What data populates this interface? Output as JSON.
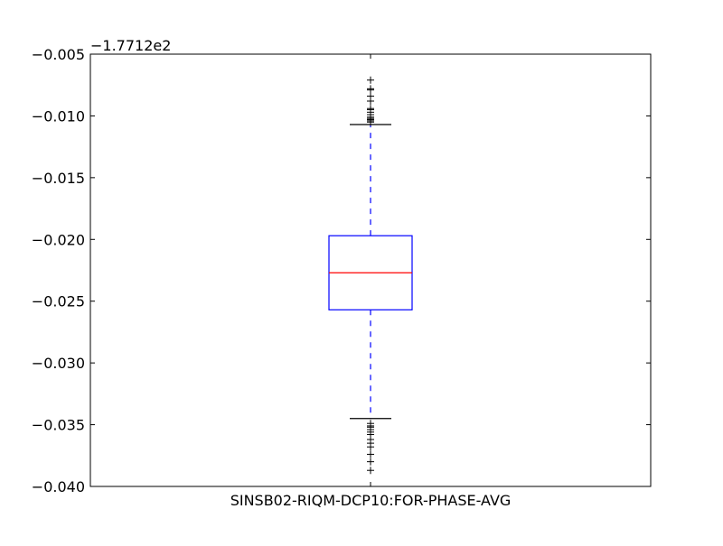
{
  "chart_data": {
    "type": "box",
    "title": "",
    "xlabel": "",
    "ylabel": "",
    "offset_label": "−1.7712e2",
    "categories": [
      "SINSB02-RIQM-DCP10:FOR-PHASE-AVG"
    ],
    "ylim": [
      -0.04,
      -0.005
    ],
    "yticks": [
      -0.04,
      -0.035,
      -0.03,
      -0.025,
      -0.02,
      -0.015,
      -0.01,
      -0.005
    ],
    "ytick_labels": [
      "−0.040",
      "−0.035",
      "−0.030",
      "−0.025",
      "−0.020",
      "−0.015",
      "−0.010",
      "−0.005"
    ],
    "boxes": [
      {
        "category": "SINSB02-RIQM-DCP10:FOR-PHASE-AVG",
        "whisker_high": -0.0107,
        "q3": -0.0197,
        "median": -0.0227,
        "q1": -0.0257,
        "whisker_low": -0.0345,
        "outliers_high": [
          -0.0071,
          -0.0078,
          -0.0079,
          -0.0084,
          -0.0088,
          -0.0094,
          -0.0095,
          -0.0097,
          -0.0099,
          -0.0101,
          -0.0102,
          -0.0103,
          -0.0104,
          -0.0105
        ],
        "outliers_low": [
          -0.0349,
          -0.0351,
          -0.0352,
          -0.0354,
          -0.0356,
          -0.0358,
          -0.0362,
          -0.0365,
          -0.0368,
          -0.0374,
          -0.038,
          -0.0387
        ]
      }
    ],
    "grid": false,
    "colors": {
      "box": "#0000ff",
      "median": "#ff0000",
      "whisker": "#0000ff",
      "cap": "#000000",
      "flier": "#000000",
      "axes": "#000000"
    }
  }
}
